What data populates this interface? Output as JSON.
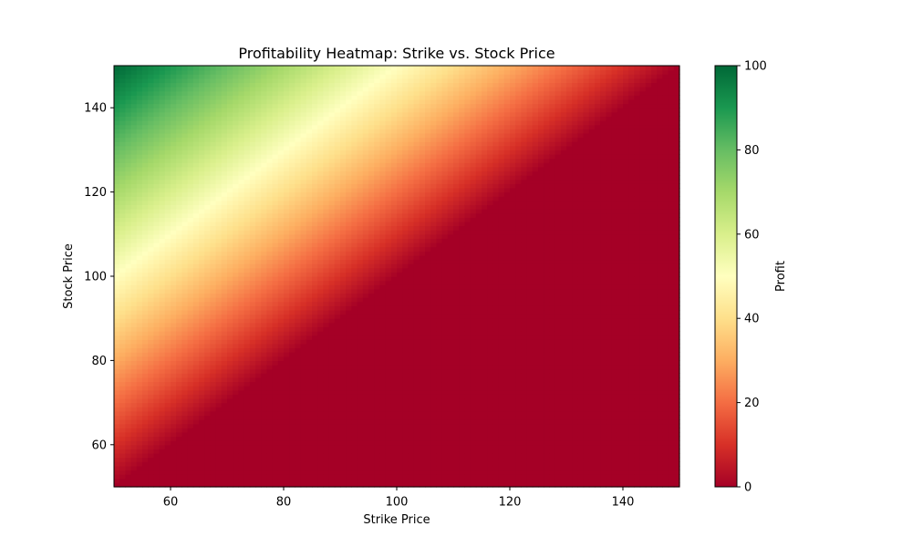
{
  "chart_data": {
    "type": "heatmap",
    "title": "Profitability Heatmap: Strike vs. Stock Price",
    "xlabel": "Strike Price",
    "ylabel": "Stock Price",
    "xlim": [
      50,
      150
    ],
    "ylim": [
      50,
      150
    ],
    "x_ticks": [
      60,
      80,
      100,
      120,
      140
    ],
    "y_ticks": [
      60,
      80,
      100,
      120,
      140
    ],
    "colorbar": {
      "label": "Profit",
      "range": [
        0,
        100
      ],
      "ticks": [
        0,
        20,
        40,
        60,
        80,
        100
      ],
      "colormap": "RdYlGn"
    },
    "z_formula": "max(0, stock_price - strike_price)",
    "grid_resolution": 100,
    "grid": false,
    "corner_values": {
      "strike_50_stock_150": 100,
      "strike_150_stock_50": 0,
      "strike_50_stock_50": 0,
      "strike_150_stock_150": 0
    },
    "colors": {
      "low": "#a50026",
      "mid": "#ffffbf",
      "high": "#006837"
    }
  }
}
